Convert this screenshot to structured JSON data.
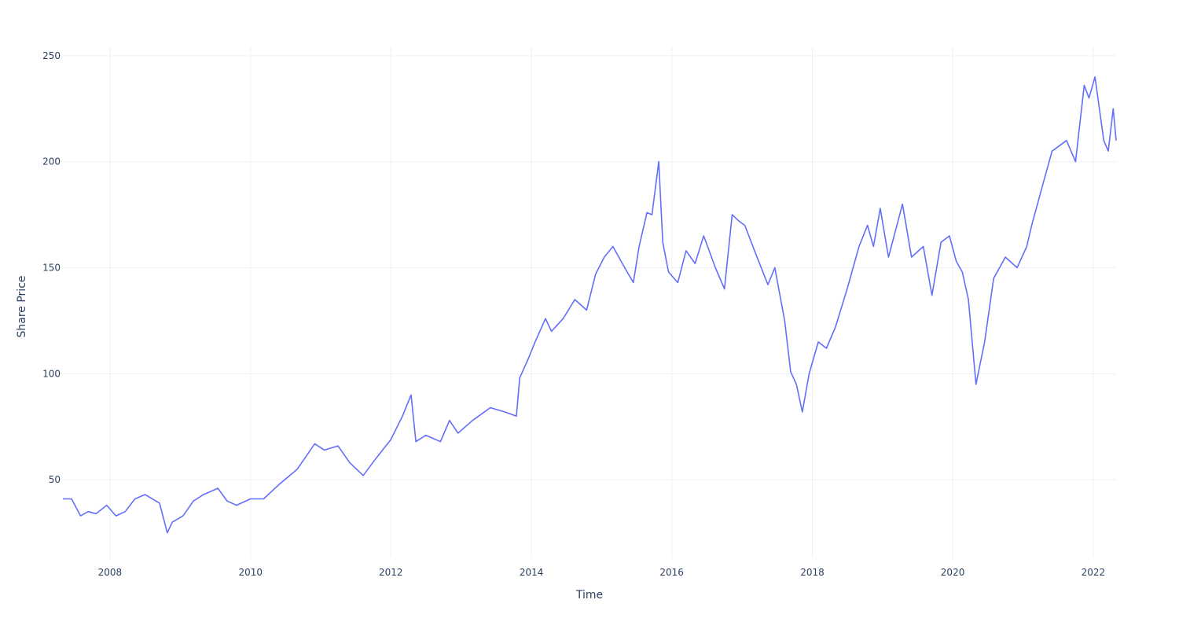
{
  "chart_data": {
    "type": "line",
    "title": "",
    "xlabel": "Time",
    "ylabel": "Share Price",
    "x_range": [
      "2007-05-01",
      "2022-04-30"
    ],
    "ylim": [
      13,
      254
    ],
    "grid": true,
    "legend": "none",
    "x_ticks": [
      {
        "label": "2008",
        "value": "2008-01-01"
      },
      {
        "label": "2010",
        "value": "2010-01-01"
      },
      {
        "label": "2012",
        "value": "2012-01-01"
      },
      {
        "label": "2014",
        "value": "2014-01-01"
      },
      {
        "label": "2016",
        "value": "2016-01-01"
      },
      {
        "label": "2018",
        "value": "2018-01-01"
      },
      {
        "label": "2020",
        "value": "2020-01-01"
      },
      {
        "label": "2022",
        "value": "2022-01-01"
      }
    ],
    "y_ticks": [
      50,
      100,
      150,
      200,
      250
    ],
    "series": [
      {
        "color": "#636efa",
        "x": [
          "2007-05-01",
          "2007-06-15",
          "2007-08-01",
          "2007-09-10",
          "2007-10-20",
          "2007-12-15",
          "2008-02-01",
          "2008-03-20",
          "2008-05-10",
          "2008-07-01",
          "2008-09-15",
          "2008-10-25",
          "2008-11-20",
          "2009-01-15",
          "2009-03-10",
          "2009-05-01",
          "2009-07-15",
          "2009-09-01",
          "2009-10-20",
          "2010-01-01",
          "2010-03-10",
          "2010-06-01",
          "2010-09-01",
          "2010-12-01",
          "2011-01-20",
          "2011-04-01",
          "2011-06-01",
          "2011-08-10",
          "2011-10-15",
          "2012-01-01",
          "2012-03-01",
          "2012-04-15",
          "2012-05-10",
          "2012-07-01",
          "2012-09-15",
          "2012-11-01",
          "2012-12-15",
          "2013-03-01",
          "2013-06-01",
          "2013-08-15",
          "2013-10-15",
          "2013-11-01",
          "2013-12-15",
          "2014-01-20",
          "2014-03-15",
          "2014-04-15",
          "2014-06-15",
          "2014-08-15",
          "2014-10-15",
          "2014-12-01",
          "2015-01-15",
          "2015-03-01",
          "2015-05-01",
          "2015-06-15",
          "2015-07-15",
          "2015-08-25",
          "2015-09-20",
          "2015-10-25",
          "2015-11-15",
          "2015-12-15",
          "2016-02-01",
          "2016-03-15",
          "2016-05-01",
          "2016-06-15",
          "2016-08-15",
          "2016-10-01",
          "2016-11-10",
          "2016-12-15",
          "2017-01-15",
          "2017-03-15",
          "2017-05-15",
          "2017-06-20",
          "2017-08-10",
          "2017-09-10",
          "2017-10-10",
          "2017-11-10",
          "2017-12-15",
          "2018-02-01",
          "2018-03-15",
          "2018-05-01",
          "2018-07-01",
          "2018-09-01",
          "2018-10-15",
          "2018-11-15",
          "2018-12-20",
          "2019-02-01",
          "2019-04-15",
          "2019-06-01",
          "2019-08-01",
          "2019-09-15",
          "2019-11-01",
          "2019-12-15",
          "2020-01-20",
          "2020-02-20",
          "2020-03-23",
          "2020-05-01",
          "2020-06-15",
          "2020-08-01",
          "2020-10-01",
          "2020-12-01",
          "2021-01-20",
          "2021-02-15",
          "2021-04-01",
          "2021-06-01",
          "2021-08-15",
          "2021-10-01",
          "2021-11-15",
          "2021-12-10",
          "2022-01-10",
          "2022-02-25",
          "2022-03-20",
          "2022-04-15",
          "2022-04-30"
        ],
        "y": [
          41,
          41,
          33,
          35,
          34,
          38,
          33,
          35,
          41,
          43,
          39,
          25,
          30,
          33,
          40,
          43,
          46,
          40,
          38,
          41,
          41,
          48,
          55,
          67,
          64,
          66,
          58,
          52,
          60,
          69,
          80,
          90,
          68,
          71,
          68,
          78,
          72,
          78,
          84,
          82,
          80,
          98,
          107,
          115,
          126,
          120,
          126,
          135,
          130,
          147,
          155,
          160,
          150,
          143,
          160,
          176,
          175,
          200,
          162,
          148,
          143,
          158,
          152,
          165,
          150,
          140,
          175,
          172,
          170,
          156,
          142,
          150,
          125,
          101,
          95,
          82,
          100,
          115,
          112,
          122,
          140,
          160,
          170,
          160,
          178,
          155,
          180,
          155,
          160,
          137,
          162,
          165,
          153,
          148,
          135,
          95,
          115,
          145,
          155,
          150,
          160,
          170,
          185,
          205,
          210,
          200,
          236,
          230,
          240,
          210,
          205,
          225,
          210
        ]
      }
    ]
  }
}
